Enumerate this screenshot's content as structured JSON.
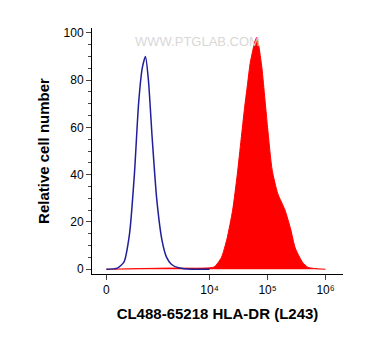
{
  "chart_data": {
    "type": "line",
    "x_label": "CL488-65218 HLA-DR (L243)",
    "y_label": "Relative cell number",
    "annotations": [
      {
        "text": "WWW.PTGLAB.COM"
      }
    ],
    "xlim": [
      -200,
      2000000
    ],
    "xticks": [
      0,
      {
        "value": 10000,
        "label": "10⁴"
      },
      {
        "value": 100000,
        "label": "10⁵"
      },
      {
        "value": 1000000,
        "label": "10⁶"
      }
    ],
    "ylim": [
      -2,
      102
    ],
    "yticks": [
      0,
      20,
      40,
      60,
      80,
      100
    ],
    "grid": false,
    "series": [
      {
        "type": "area",
        "color": "#ff0000",
        "x": [
          0,
          2000,
          8000,
          12000,
          16000,
          20000,
          25000,
          30000,
          35000,
          40000,
          45000,
          50000,
          55000,
          60000,
          65000,
          70000,
          80000,
          90000,
          100000,
          120000,
          150000,
          200000,
          250000,
          300000,
          400000,
          500000,
          1000000
        ],
        "values": [
          0,
          0.5,
          0.5,
          1,
          5,
          13,
          25,
          40,
          55,
          68,
          78,
          87,
          92,
          96,
          98,
          95,
          85,
          72,
          60,
          42,
          32,
          25,
          17,
          9,
          3,
          0.8,
          0
        ]
      },
      {
        "type": "line",
        "color": "#1f1f9a",
        "x": [
          0,
          150,
          250,
          350,
          450,
          550,
          650,
          750,
          850,
          1000,
          1200,
          1500,
          1800,
          2200,
          3000,
          5000,
          10000
        ],
        "values": [
          0,
          0.5,
          3,
          15,
          40,
          70,
          85,
          90,
          80,
          55,
          30,
          12,
          5,
          2,
          0.5,
          0,
          0
        ]
      }
    ]
  }
}
